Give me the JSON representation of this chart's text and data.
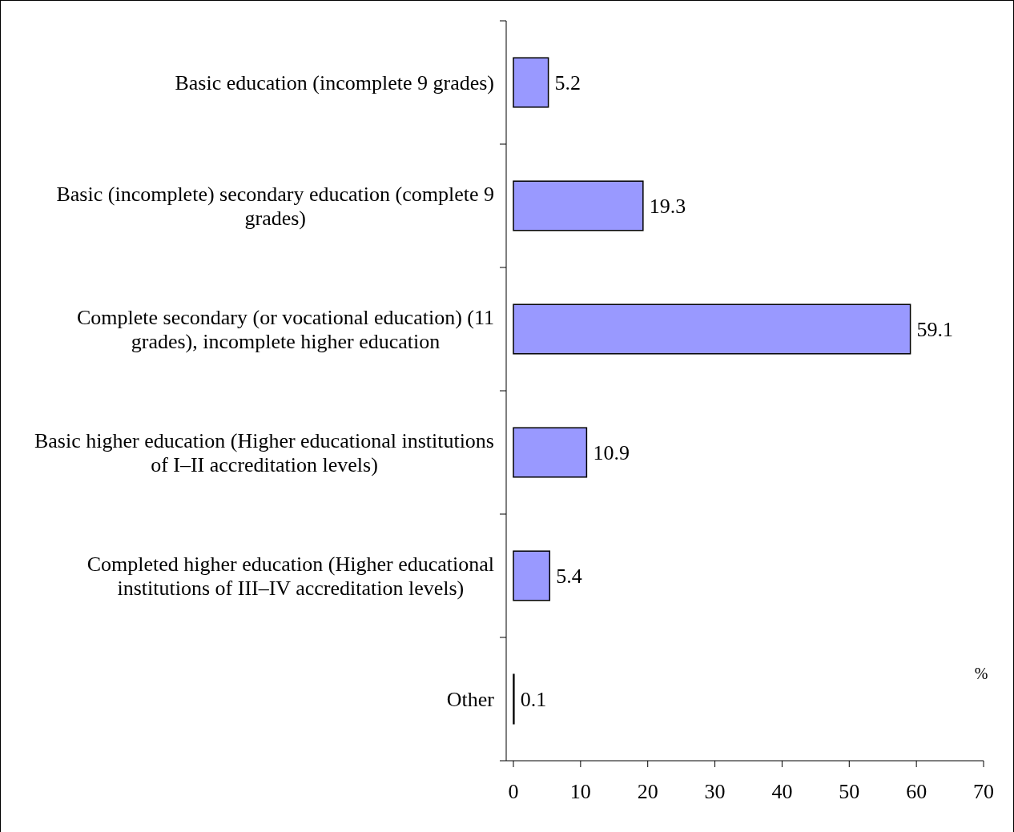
{
  "chart_data": {
    "type": "bar",
    "orientation": "horizontal",
    "categories": [
      "Basic education (incomplete 9 grades)",
      "Basic (incomplete) secondary education (complete 9 grades)",
      "Complete secondary (or vocational education) (11 grades), incomplete higher education",
      "Basic higher education (Higher educational institutions of  I–II accreditation levels)",
      "Completed higher education (Higher educational institutions of  III–IV accreditation levels)",
      "Other"
    ],
    "values": [
      5.2,
      19.3,
      59.1,
      10.9,
      5.4,
      0.1
    ],
    "color": "#9999ff",
    "xlabel": "%",
    "xlim": [
      0,
      70
    ],
    "xticks": [
      0,
      10,
      20,
      30,
      40,
      50,
      60,
      70
    ],
    "data_labels": true
  }
}
